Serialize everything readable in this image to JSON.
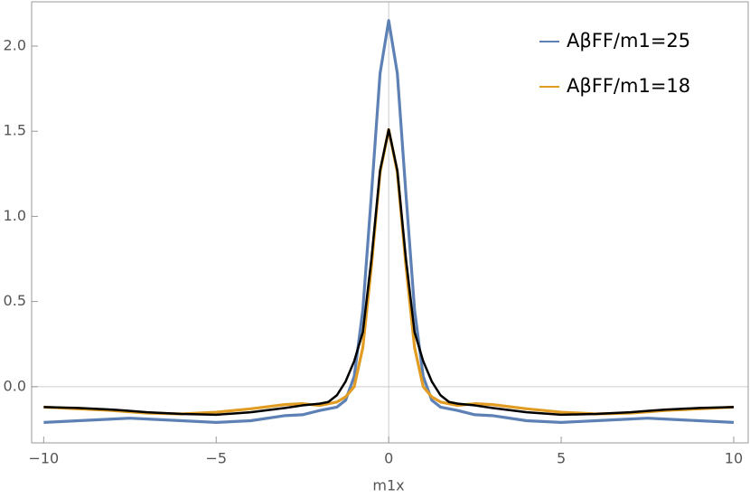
{
  "chart_data": {
    "type": "line",
    "xlabel": "m1x",
    "x": [
      -10,
      -9,
      -8,
      -7.5,
      -7,
      -6,
      -5,
      -4,
      -3,
      -2.5,
      -2,
      -1.75,
      -1.5,
      -1.25,
      -1,
      -0.75,
      -0.5,
      -0.25,
      0,
      0.25,
      0.5,
      0.75,
      1,
      1.25,
      1.5,
      1.75,
      2,
      2.5,
      3,
      4,
      5,
      6,
      7,
      7.5,
      8,
      9,
      10
    ],
    "series": [
      {
        "name": "AβFF/m1=25",
        "color": "#5e81b5",
        "values": [
          -0.21,
          -0.2,
          -0.19,
          -0.185,
          -0.19,
          -0.2,
          -0.21,
          -0.2,
          -0.17,
          -0.165,
          -0.14,
          -0.13,
          -0.12,
          -0.08,
          0.06,
          0.45,
          1.13,
          1.84,
          2.15,
          1.84,
          1.13,
          0.45,
          0.06,
          -0.08,
          -0.12,
          -0.13,
          -0.14,
          -0.165,
          -0.17,
          -0.2,
          -0.21,
          -0.2,
          -0.19,
          -0.185,
          -0.19,
          -0.2,
          -0.21
        ]
      },
      {
        "name": "AβFF/m1=18",
        "color": "#e19c24",
        "values": [
          -0.12,
          -0.13,
          -0.14,
          -0.148,
          -0.155,
          -0.16,
          -0.15,
          -0.13,
          -0.105,
          -0.1,
          -0.11,
          -0.1,
          -0.09,
          -0.06,
          0.0,
          0.23,
          0.71,
          1.26,
          1.51,
          1.26,
          0.71,
          0.23,
          0.0,
          -0.06,
          -0.09,
          -0.1,
          -0.11,
          -0.1,
          -0.105,
          -0.13,
          -0.15,
          -0.16,
          -0.155,
          -0.148,
          -0.14,
          -0.13,
          -0.12
        ]
      },
      {
        "color": "#000000",
        "values": [
          -0.12,
          -0.125,
          -0.135,
          -0.142,
          -0.15,
          -0.16,
          -0.165,
          -0.15,
          -0.125,
          -0.11,
          -0.1,
          -0.09,
          -0.05,
          0.03,
          0.15,
          0.32,
          0.75,
          1.27,
          1.51,
          1.27,
          0.75,
          0.32,
          0.15,
          0.03,
          -0.05,
          -0.09,
          -0.1,
          -0.11,
          -0.125,
          -0.15,
          -0.165,
          -0.16,
          -0.15,
          -0.142,
          -0.135,
          -0.125,
          -0.12
        ]
      }
    ],
    "xlim": [
      -10.35,
      10.42
    ],
    "ylim": [
      -0.33,
      2.26
    ],
    "xticks": [
      {
        "value": -10,
        "label": "−10"
      },
      {
        "value": -5,
        "label": "−5"
      },
      0,
      5,
      10
    ],
    "yticks": [
      {
        "value": 0,
        "label": "0.0"
      },
      {
        "value": 0.5,
        "label": "0.5"
      },
      {
        "value": 1,
        "label": "1.0"
      },
      {
        "value": 1.5,
        "label": "1.5"
      },
      {
        "value": 2,
        "label": "2.0"
      }
    ],
    "legend": "top-right"
  }
}
